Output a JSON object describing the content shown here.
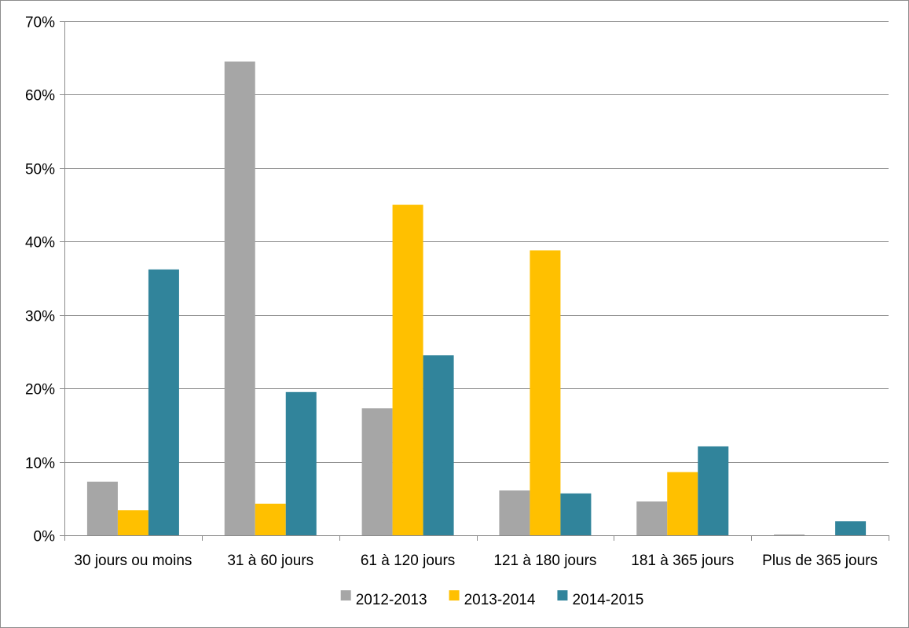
{
  "chart_data": {
    "type": "bar",
    "title": "",
    "xlabel": "",
    "ylabel": "",
    "categories": [
      "30 jours ou moins",
      "31 à 60 jours",
      "61 à 120 jours",
      "121 à 180 jours",
      "181 à 365 jours",
      "Plus de 365 jours"
    ],
    "series": [
      {
        "name": "2012-2013",
        "color": "#a6a6a6",
        "values": [
          7.3,
          64.5,
          17.3,
          6.1,
          4.6,
          0.1
        ]
      },
      {
        "name": "2013-2014",
        "color": "#ffc000",
        "values": [
          3.4,
          4.3,
          45.0,
          38.8,
          8.6,
          0.0
        ]
      },
      {
        "name": "2014-2015",
        "color": "#31849b",
        "values": [
          36.2,
          19.5,
          24.5,
          5.7,
          12.1,
          1.9
        ]
      }
    ],
    "ylim": [
      0,
      70
    ],
    "yticks": [
      0,
      10,
      20,
      30,
      40,
      50,
      60,
      70
    ],
    "ytick_labels": [
      "0%",
      "10%",
      "20%",
      "30%",
      "40%",
      "50%",
      "60%",
      "70%"
    ],
    "grid": true,
    "legend_position": "bottom"
  }
}
